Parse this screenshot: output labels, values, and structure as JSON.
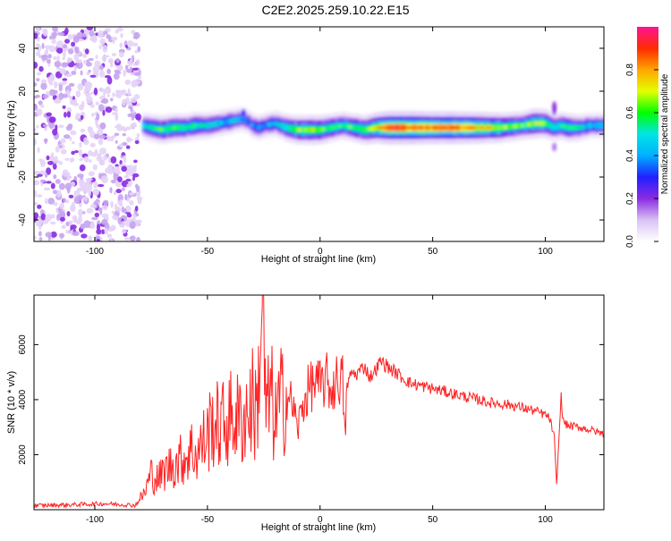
{
  "title": "C2E2.2025.259.10.22.E15",
  "chart_data": [
    {
      "type": "heatmap",
      "name": "spectrogram",
      "xlabel": "Height of straight line (km)",
      "ylabel": "Frequency (Hz)",
      "xlim": [
        -127,
        126
      ],
      "ylim": [
        -50,
        50
      ],
      "xticks": [
        -100,
        -50,
        0,
        50,
        100
      ],
      "yticks": [
        -40,
        -20,
        0,
        20,
        40
      ],
      "colorbar": {
        "label": "Normalized spectral amplitude",
        "range": [
          0.0,
          1.0
        ],
        "ticks": [
          0.0,
          0.2,
          0.4,
          0.6,
          0.8
        ],
        "tick_labels": [
          "0.0",
          "0.2",
          "0.4",
          "0.6",
          "0.8"
        ],
        "colormap": [
          "#ffffff",
          "#d9c2f5",
          "#8a2be2",
          "#2020ff",
          "#00b0ff",
          "#00e5e5",
          "#00ff00",
          "#e5ff00",
          "#ffa500",
          "#ff2a00",
          "#ff1493"
        ]
      },
      "noise_region_x": [
        -127,
        -80
      ],
      "ridge": {
        "x": [
          -79,
          -75,
          -70,
          -65,
          -60,
          -55,
          -50,
          -45,
          -40,
          -35,
          -32,
          -30,
          -27,
          -25,
          -20,
          -15,
          -10,
          -5,
          0,
          5,
          10,
          15,
          20,
          25,
          30,
          40,
          50,
          60,
          70,
          80,
          90,
          95,
          100,
          104,
          107,
          110,
          115,
          120,
          126
        ],
        "freq": [
          4,
          3,
          2,
          3,
          3,
          4,
          4,
          5,
          6,
          7,
          6,
          4,
          3,
          4,
          5,
          3,
          2,
          2,
          2,
          3,
          4,
          3,
          2,
          3,
          3,
          3,
          3,
          3,
          3,
          3,
          4,
          5,
          5,
          3,
          4,
          3,
          3,
          4,
          4
        ],
        "amplitude": [
          0.45,
          0.55,
          0.6,
          0.6,
          0.55,
          0.55,
          0.5,
          0.45,
          0.45,
          0.4,
          0.35,
          0.4,
          0.45,
          0.4,
          0.45,
          0.55,
          0.65,
          0.7,
          0.65,
          0.6,
          0.55,
          0.6,
          0.65,
          0.75,
          0.9,
          0.9,
          0.85,
          0.85,
          0.8,
          0.7,
          0.6,
          0.7,
          0.65,
          0.5,
          0.55,
          0.6,
          0.5,
          0.45,
          0.45
        ]
      }
    },
    {
      "type": "line",
      "name": "snr",
      "xlabel": "Height of straight line (km)",
      "ylabel": "SNR (10 * v/v)",
      "xlim": [
        -127,
        126
      ],
      "ylim": [
        0,
        7800
      ],
      "xticks": [
        -100,
        -50,
        0,
        50,
        100
      ],
      "yticks": [
        2000,
        4000,
        6000
      ],
      "color": "#ff2222",
      "series": [
        {
          "name": "SNR",
          "x": [
            -127,
            -110,
            -95,
            -82,
            -78,
            -75,
            -72,
            -68,
            -64,
            -60,
            -57,
            -55,
            -50,
            -48,
            -45,
            -40,
            -38,
            -35,
            -30,
            -28,
            -26,
            -25,
            -24,
            -22,
            -20,
            -18,
            -15,
            -12,
            -10,
            -8,
            -5,
            -3,
            0,
            3,
            5,
            8,
            10,
            11,
            12,
            14,
            16,
            18,
            20,
            22,
            24,
            27,
            30,
            35,
            40,
            45,
            50,
            55,
            60,
            65,
            70,
            75,
            80,
            85,
            90,
            95,
            100,
            102,
            104,
            105,
            106,
            107,
            108,
            110,
            115,
            120,
            126
          ],
          "y": [
            150,
            180,
            220,
            160,
            600,
            1300,
            1100,
            1500,
            1700,
            1900,
            2200,
            2000,
            2700,
            3200,
            3000,
            3300,
            3400,
            3200,
            3900,
            3500,
            7200,
            6500,
            3200,
            4300,
            3100,
            3800,
            4200,
            3800,
            2900,
            3700,
            4400,
            4600,
            4500,
            4700,
            4300,
            4800,
            4700,
            2600,
            4500,
            5000,
            4900,
            5100,
            5200,
            4800,
            5000,
            5400,
            5200,
            4900,
            4600,
            4500,
            4400,
            4300,
            4200,
            4100,
            4000,
            3900,
            3850,
            3800,
            3700,
            3600,
            3450,
            3300,
            2600,
            900,
            2500,
            4100,
            3200,
            3050,
            3000,
            2900,
            2750
          ]
        }
      ]
    }
  ]
}
